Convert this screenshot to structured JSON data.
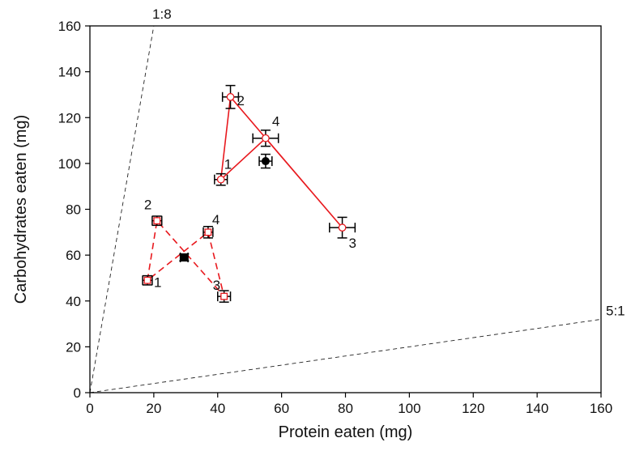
{
  "chart_data": {
    "type": "scatter",
    "xlabel": "Protein eaten (mg)",
    "ylabel": "Carbohydrates eaten (mg)",
    "xlim": [
      0,
      160
    ],
    "ylim": [
      0,
      160
    ],
    "x_ticks": [
      0,
      20,
      40,
      60,
      80,
      100,
      120,
      140,
      160
    ],
    "y_ticks": [
      0,
      20,
      40,
      60,
      80,
      100,
      120,
      140,
      160
    ],
    "grid": false,
    "legend": "none",
    "ratio_lines": [
      {
        "label": "1:8",
        "protein_to_carb": 0.125
      },
      {
        "label": "5:1",
        "protein_to_carb": 5
      }
    ],
    "series": [
      {
        "marker": "open-circle",
        "color": "#e8191e",
        "line": "solid",
        "points": [
          {
            "label": "1",
            "x": 41,
            "y": 93,
            "xerr": 2,
            "yerr": 2.5
          },
          {
            "label": "2",
            "x": 44,
            "y": 129,
            "xerr": 2.5,
            "yerr": 5
          },
          {
            "label": "3",
            "x": 79,
            "y": 72,
            "xerr": 4,
            "yerr": 4.5
          },
          {
            "label": "4",
            "x": 55,
            "y": 111,
            "xerr": 4,
            "yerr": 3.5
          }
        ]
      },
      {
        "marker": "open-square",
        "color": "#e8191e",
        "line": "dashed",
        "points": [
          {
            "label": "1",
            "x": 18,
            "y": 49,
            "xerr": 1.5,
            "yerr": 2
          },
          {
            "label": "2",
            "x": 21,
            "y": 75,
            "xerr": 1.5,
            "yerr": 2
          },
          {
            "label": "3",
            "x": 42,
            "y": 42,
            "xerr": 2,
            "yerr": 2.5
          },
          {
            "label": "4",
            "x": 37,
            "y": 70,
            "xerr": 1.5,
            "yerr": 2.5
          }
        ]
      }
    ],
    "mean_points": [
      {
        "marker": "filled-circle",
        "x": 55,
        "y": 101,
        "xerr": 2,
        "yerr": 3
      },
      {
        "marker": "filled-square",
        "x": 29.5,
        "y": 59,
        "xerr": 1.2,
        "yerr": 1.5
      }
    ]
  }
}
